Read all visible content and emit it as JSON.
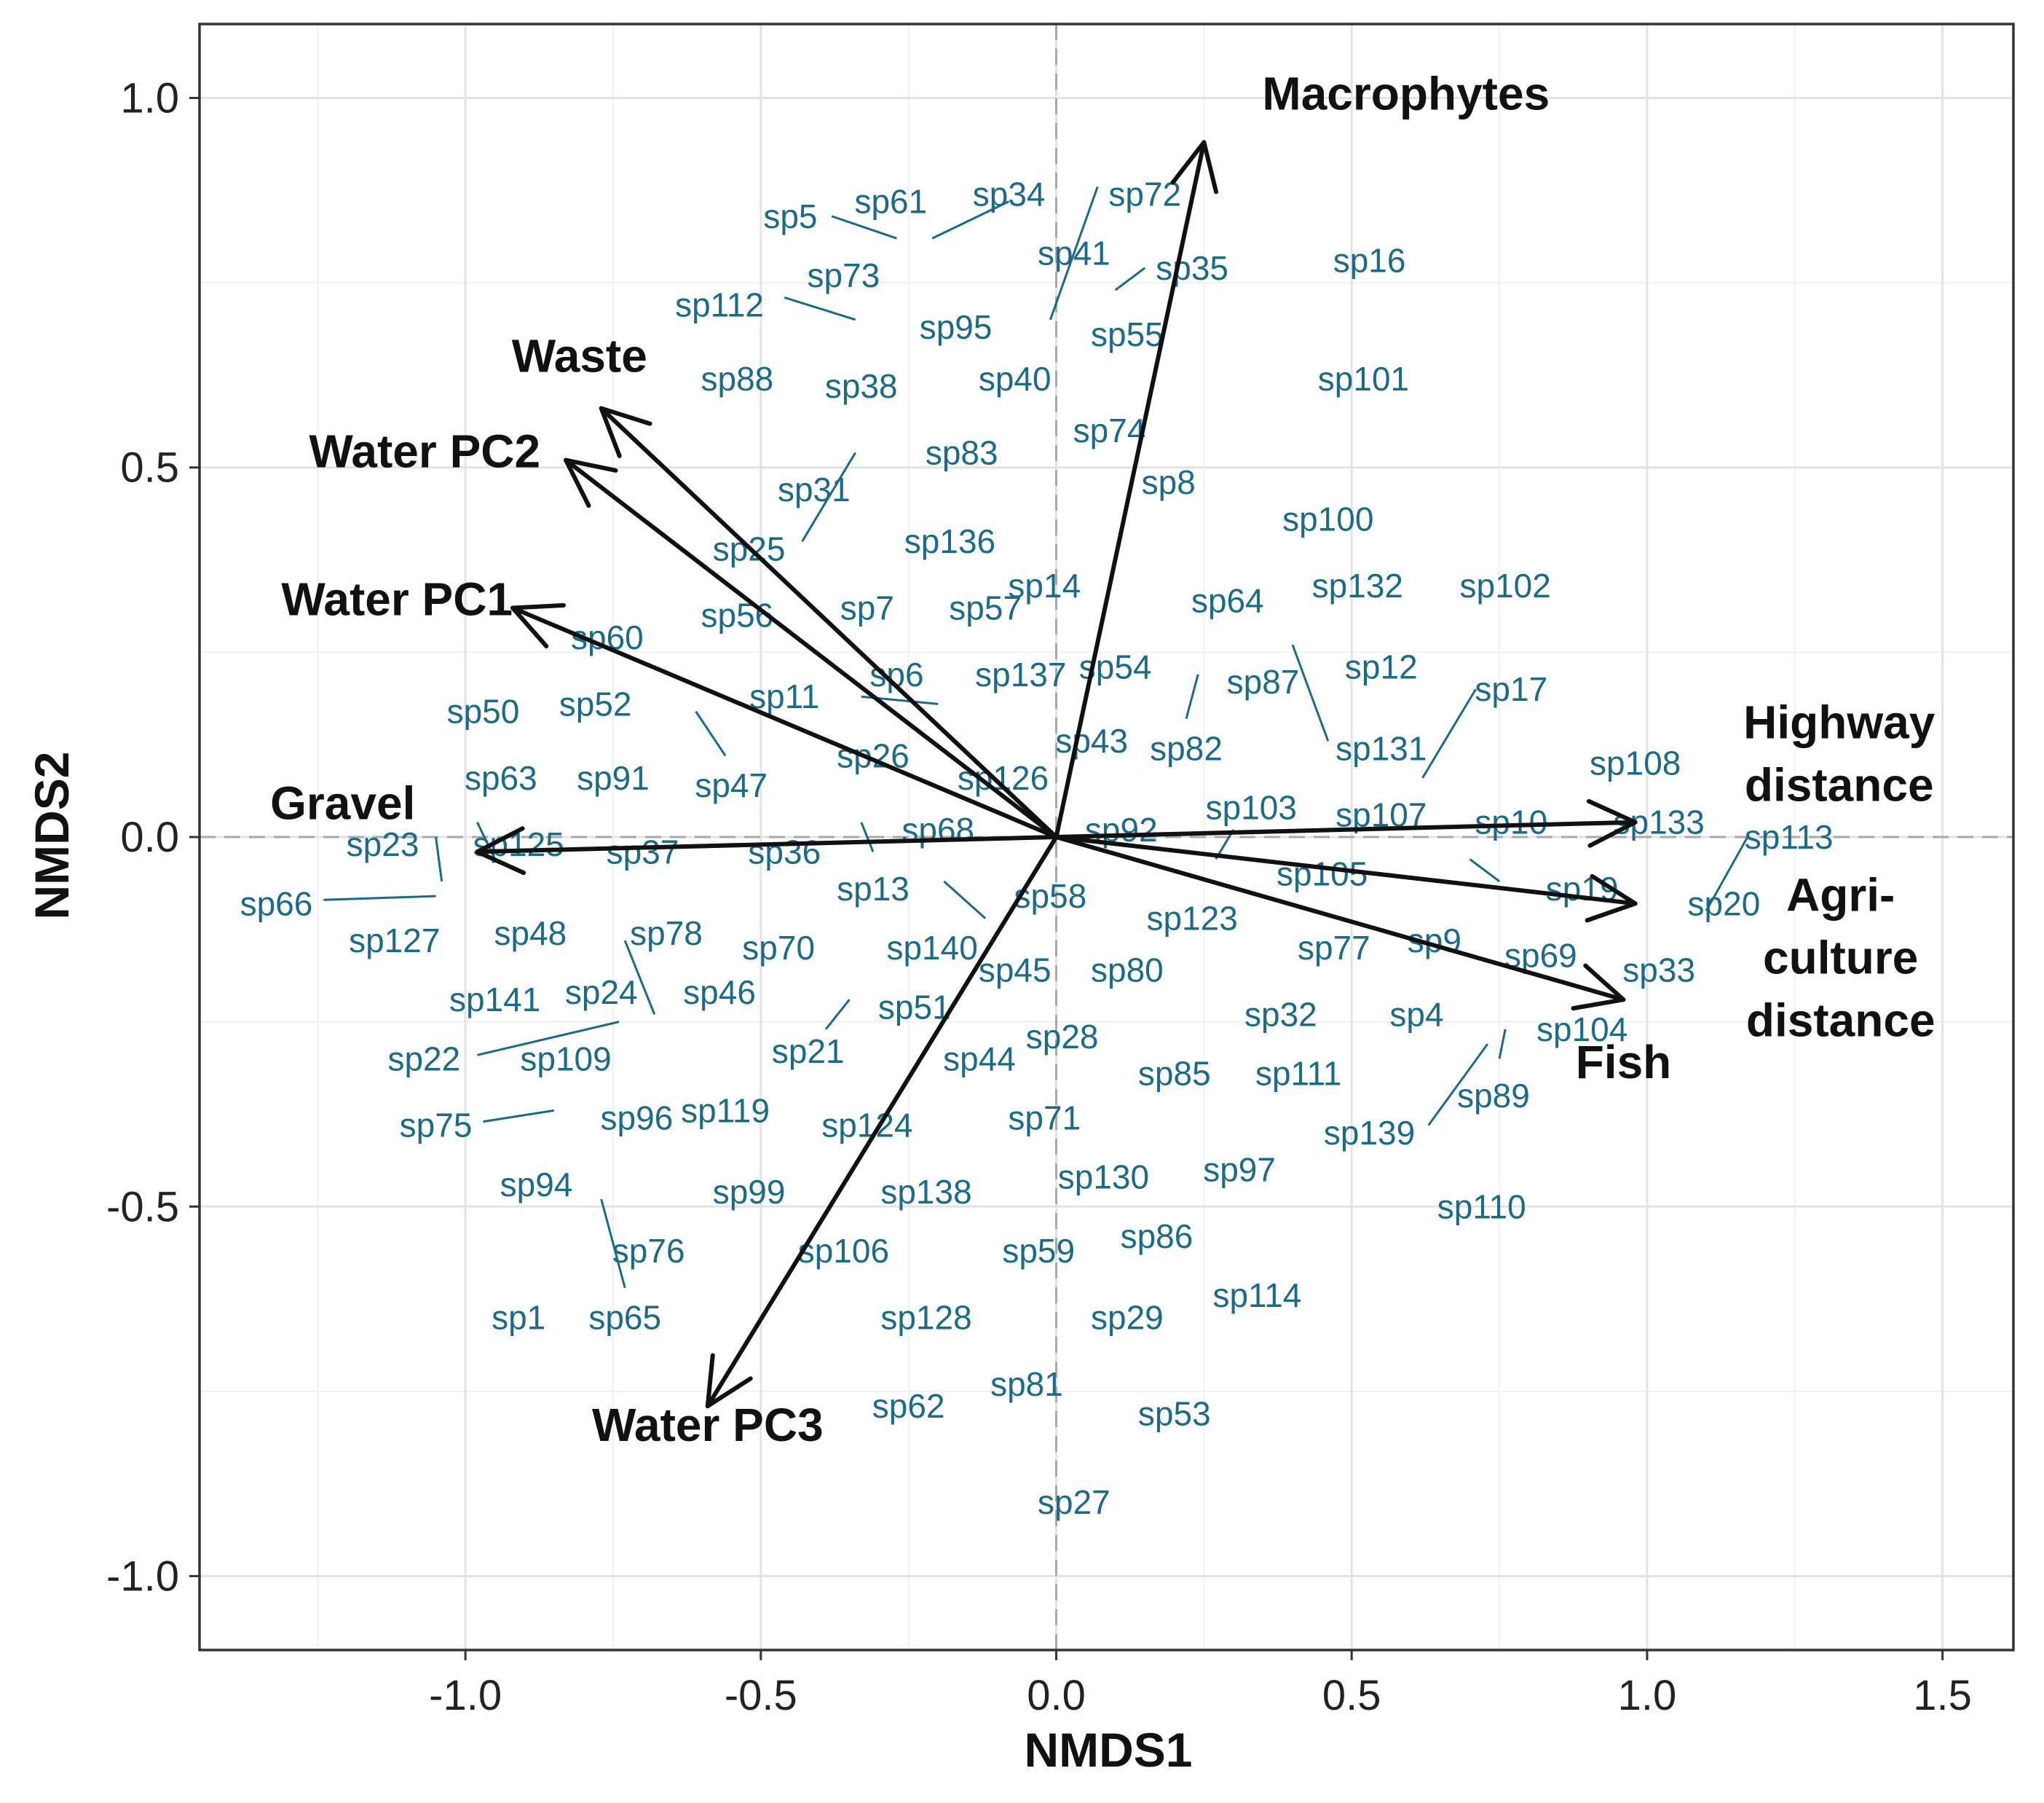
{
  "chart_data": {
    "type": "scatter",
    "title": "",
    "xlabel": "NMDS1",
    "ylabel": "NMDS2",
    "xlim": [
      -1.45,
      1.62
    ],
    "ylim": [
      -1.1,
      1.1
    ],
    "xticks": [
      -1.0,
      -0.5,
      0.0,
      0.5,
      1.0,
      1.5
    ],
    "yticks": [
      -1.0,
      -0.5,
      0.0,
      0.5,
      1.0
    ],
    "xtick_labels": [
      "-1.0",
      "-0.5",
      "0.0",
      "0.5",
      "1.0",
      "1.5"
    ],
    "ytick_labels": [
      "-1.0",
      "-0.5",
      "0.0",
      "0.5",
      "1.0"
    ],
    "grid": true,
    "colors": {
      "species": "#1a6a8a",
      "vectors": "#111111",
      "grid": "#e3e3e3"
    },
    "vectors": [
      {
        "name": "Macrophytes",
        "x": 0.25,
        "y": 0.94,
        "label_lines": [
          "Macrophytes"
        ]
      },
      {
        "name": "Waste",
        "x": -0.77,
        "y": 0.58,
        "label_lines": [
          "Waste"
        ]
      },
      {
        "name": "Water PC2",
        "x": -0.83,
        "y": 0.51,
        "label_lines": [
          "Water PC2"
        ]
      },
      {
        "name": "Water PC1",
        "x": -0.92,
        "y": 0.31,
        "label_lines": [
          "Water PC1"
        ]
      },
      {
        "name": "Gravel",
        "x": -0.98,
        "y": -0.02,
        "label_lines": [
          "Gravel"
        ]
      },
      {
        "name": "Water PC3",
        "x": -0.59,
        "y": -0.77,
        "label_lines": [
          "Water PC3"
        ]
      },
      {
        "name": "Highway distance",
        "x": 0.98,
        "y": 0.02,
        "label_lines": [
          "Highway",
          "distance"
        ]
      },
      {
        "name": "Agriculture distance",
        "x": 0.98,
        "y": -0.09,
        "label_lines": [
          "Agri-",
          "culture",
          "distance"
        ]
      },
      {
        "name": "Fish",
        "x": 0.96,
        "y": -0.22,
        "label_lines": [
          "Fish"
        ]
      }
    ],
    "species": [
      {
        "name": "sp5",
        "x": -0.45,
        "y": 0.84
      },
      {
        "name": "sp61",
        "x": -0.28,
        "y": 0.86
      },
      {
        "name": "sp34",
        "x": -0.08,
        "y": 0.87
      },
      {
        "name": "sp72",
        "x": 0.15,
        "y": 0.87
      },
      {
        "name": "sp41",
        "x": 0.03,
        "y": 0.79
      },
      {
        "name": "sp35",
        "x": 0.23,
        "y": 0.77
      },
      {
        "name": "sp16",
        "x": 0.53,
        "y": 0.78
      },
      {
        "name": "sp73",
        "x": -0.36,
        "y": 0.76
      },
      {
        "name": "sp112",
        "x": -0.57,
        "y": 0.72
      },
      {
        "name": "sp95",
        "x": -0.17,
        "y": 0.69
      },
      {
        "name": "sp55",
        "x": 0.12,
        "y": 0.68
      },
      {
        "name": "sp88",
        "x": -0.54,
        "y": 0.62
      },
      {
        "name": "sp38",
        "x": -0.33,
        "y": 0.61
      },
      {
        "name": "sp40",
        "x": -0.07,
        "y": 0.62
      },
      {
        "name": "sp101",
        "x": 0.52,
        "y": 0.62
      },
      {
        "name": "sp74",
        "x": 0.09,
        "y": 0.55
      },
      {
        "name": "sp83",
        "x": -0.16,
        "y": 0.52
      },
      {
        "name": "sp31",
        "x": -0.41,
        "y": 0.47
      },
      {
        "name": "sp8",
        "x": 0.19,
        "y": 0.48
      },
      {
        "name": "sp100",
        "x": 0.46,
        "y": 0.43
      },
      {
        "name": "sp136",
        "x": -0.18,
        "y": 0.4
      },
      {
        "name": "sp25",
        "x": -0.52,
        "y": 0.39
      },
      {
        "name": "sp14",
        "x": -0.02,
        "y": 0.34
      },
      {
        "name": "sp132",
        "x": 0.51,
        "y": 0.34
      },
      {
        "name": "sp102",
        "x": 0.76,
        "y": 0.34
      },
      {
        "name": "sp64",
        "x": 0.29,
        "y": 0.32
      },
      {
        "name": "sp7",
        "x": -0.32,
        "y": 0.31
      },
      {
        "name": "sp57",
        "x": -0.12,
        "y": 0.31
      },
      {
        "name": "sp56",
        "x": -0.54,
        "y": 0.3
      },
      {
        "name": "sp60",
        "x": -0.76,
        "y": 0.27
      },
      {
        "name": "sp6",
        "x": -0.27,
        "y": 0.22
      },
      {
        "name": "sp137",
        "x": -0.06,
        "y": 0.22
      },
      {
        "name": "sp54",
        "x": 0.1,
        "y": 0.23
      },
      {
        "name": "sp87",
        "x": 0.35,
        "y": 0.21
      },
      {
        "name": "sp12",
        "x": 0.55,
        "y": 0.23
      },
      {
        "name": "sp17",
        "x": 0.77,
        "y": 0.2
      },
      {
        "name": "sp11",
        "x": -0.46,
        "y": 0.19
      },
      {
        "name": "sp50",
        "x": -0.97,
        "y": 0.17
      },
      {
        "name": "sp52",
        "x": -0.78,
        "y": 0.18
      },
      {
        "name": "sp131",
        "x": 0.55,
        "y": 0.12
      },
      {
        "name": "sp43",
        "x": 0.06,
        "y": 0.13
      },
      {
        "name": "sp82",
        "x": 0.22,
        "y": 0.12
      },
      {
        "name": "sp26",
        "x": -0.31,
        "y": 0.11
      },
      {
        "name": "sp108",
        "x": 0.98,
        "y": 0.1
      },
      {
        "name": "sp63",
        "x": -0.94,
        "y": 0.08
      },
      {
        "name": "sp91",
        "x": -0.75,
        "y": 0.08
      },
      {
        "name": "sp47",
        "x": -0.55,
        "y": 0.07
      },
      {
        "name": "sp126",
        "x": -0.09,
        "y": 0.08
      },
      {
        "name": "sp103",
        "x": 0.33,
        "y": 0.04
      },
      {
        "name": "sp107",
        "x": 0.55,
        "y": 0.03
      },
      {
        "name": "sp10",
        "x": 0.77,
        "y": 0.02
      },
      {
        "name": "sp133",
        "x": 1.02,
        "y": 0.02
      },
      {
        "name": "sp113",
        "x": 1.24,
        "y": 0.0
      },
      {
        "name": "sp23",
        "x": -1.14,
        "y": -0.01
      },
      {
        "name": "sp125",
        "x": -0.91,
        "y": -0.01
      },
      {
        "name": "sp37",
        "x": -0.7,
        "y": -0.02
      },
      {
        "name": "sp36",
        "x": -0.46,
        "y": -0.02
      },
      {
        "name": "sp68",
        "x": -0.2,
        "y": 0.01
      },
      {
        "name": "sp92",
        "x": 0.11,
        "y": 0.01
      },
      {
        "name": "sp105",
        "x": 0.45,
        "y": -0.05
      },
      {
        "name": "sp19",
        "x": 0.89,
        "y": -0.07
      },
      {
        "name": "sp20",
        "x": 1.13,
        "y": -0.09
      },
      {
        "name": "sp66",
        "x": -1.32,
        "y": -0.09
      },
      {
        "name": "sp13",
        "x": -0.31,
        "y": -0.07
      },
      {
        "name": "sp58",
        "x": -0.01,
        "y": -0.08
      },
      {
        "name": "sp123",
        "x": 0.23,
        "y": -0.11
      },
      {
        "name": "sp127",
        "x": -1.12,
        "y": -0.14
      },
      {
        "name": "sp48",
        "x": -0.89,
        "y": -0.13
      },
      {
        "name": "sp78",
        "x": -0.66,
        "y": -0.13
      },
      {
        "name": "sp70",
        "x": -0.47,
        "y": -0.15
      },
      {
        "name": "sp140",
        "x": -0.21,
        "y": -0.15
      },
      {
        "name": "sp77",
        "x": 0.47,
        "y": -0.15
      },
      {
        "name": "sp9",
        "x": 0.64,
        "y": -0.14
      },
      {
        "name": "sp69",
        "x": 0.82,
        "y": -0.16
      },
      {
        "name": "sp33",
        "x": 1.02,
        "y": -0.18
      },
      {
        "name": "sp45",
        "x": -0.07,
        "y": -0.18
      },
      {
        "name": "sp80",
        "x": 0.12,
        "y": -0.18
      },
      {
        "name": "sp141",
        "x": -0.95,
        "y": -0.22
      },
      {
        "name": "sp24",
        "x": -0.77,
        "y": -0.21
      },
      {
        "name": "sp46",
        "x": -0.57,
        "y": -0.21
      },
      {
        "name": "sp51",
        "x": -0.24,
        "y": -0.23
      },
      {
        "name": "sp32",
        "x": 0.38,
        "y": -0.24
      },
      {
        "name": "sp4",
        "x": 0.61,
        "y": -0.24
      },
      {
        "name": "sp28",
        "x": 0.01,
        "y": -0.27
      },
      {
        "name": "sp104",
        "x": 0.89,
        "y": -0.26
      },
      {
        "name": "sp21",
        "x": -0.42,
        "y": -0.29
      },
      {
        "name": "sp22",
        "x": -1.07,
        "y": -0.3
      },
      {
        "name": "sp109",
        "x": -0.83,
        "y": -0.3
      },
      {
        "name": "sp44",
        "x": -0.13,
        "y": -0.3
      },
      {
        "name": "sp85",
        "x": 0.2,
        "y": -0.32
      },
      {
        "name": "sp111",
        "x": 0.41,
        "y": -0.32
      },
      {
        "name": "sp89",
        "x": 0.74,
        "y": -0.35
      },
      {
        "name": "sp75",
        "x": -1.05,
        "y": -0.39
      },
      {
        "name": "sp96",
        "x": -0.71,
        "y": -0.38
      },
      {
        "name": "sp119",
        "x": -0.56,
        "y": -0.37
      },
      {
        "name": "sp124",
        "x": -0.32,
        "y": -0.39
      },
      {
        "name": "sp71",
        "x": -0.02,
        "y": -0.38
      },
      {
        "name": "sp139",
        "x": 0.53,
        "y": -0.4
      },
      {
        "name": "sp130",
        "x": 0.08,
        "y": -0.46
      },
      {
        "name": "sp97",
        "x": 0.31,
        "y": -0.45
      },
      {
        "name": "sp94",
        "x": -0.88,
        "y": -0.47
      },
      {
        "name": "sp99",
        "x": -0.52,
        "y": -0.48
      },
      {
        "name": "sp138",
        "x": -0.22,
        "y": -0.48
      },
      {
        "name": "sp110",
        "x": 0.72,
        "y": -0.5
      },
      {
        "name": "sp76",
        "x": -0.69,
        "y": -0.56
      },
      {
        "name": "sp106",
        "x": -0.36,
        "y": -0.56
      },
      {
        "name": "sp59",
        "x": -0.03,
        "y": -0.56
      },
      {
        "name": "sp86",
        "x": 0.17,
        "y": -0.54
      },
      {
        "name": "sp114",
        "x": 0.34,
        "y": -0.62
      },
      {
        "name": "sp1",
        "x": -0.91,
        "y": -0.65
      },
      {
        "name": "sp65",
        "x": -0.73,
        "y": -0.65
      },
      {
        "name": "sp128",
        "x": -0.22,
        "y": -0.65
      },
      {
        "name": "sp29",
        "x": 0.12,
        "y": -0.65
      },
      {
        "name": "sp81",
        "x": -0.05,
        "y": -0.74
      },
      {
        "name": "sp62",
        "x": -0.25,
        "y": -0.77
      },
      {
        "name": "sp53",
        "x": 0.2,
        "y": -0.78
      },
      {
        "name": "sp27",
        "x": 0.03,
        "y": -0.9
      }
    ],
    "leader_lines": [
      [
        -0.38,
        0.84,
        -0.27,
        0.81
      ],
      [
        -0.21,
        0.81,
        -0.08,
        0.86
      ],
      [
        0.07,
        0.88,
        -0.01,
        0.7
      ],
      [
        0.1,
        0.74,
        0.15,
        0.77
      ],
      [
        -0.46,
        0.73,
        -0.34,
        0.7
      ],
      [
        -0.34,
        0.52,
        -0.43,
        0.4
      ],
      [
        0.24,
        0.22,
        0.22,
        0.16
      ],
      [
        0.4,
        0.26,
        0.46,
        0.13
      ],
      [
        0.71,
        0.2,
        0.62,
        0.08
      ],
      [
        -0.61,
        0.17,
        -0.56,
        0.11
      ],
      [
        -0.33,
        0.19,
        -0.2,
        0.18
      ],
      [
        -0.98,
        0.02,
        -0.95,
        -0.03
      ],
      [
        -1.05,
        0.0,
        -1.04,
        -0.06
      ],
      [
        -1.24,
        -0.085,
        -1.05,
        -0.08
      ],
      [
        -0.33,
        0.02,
        -0.31,
        -0.02
      ],
      [
        -0.19,
        -0.06,
        -0.12,
        -0.11
      ],
      [
        0.3,
        0.01,
        0.27,
        -0.03
      ],
      [
        0.7,
        -0.03,
        0.75,
        -0.06
      ],
      [
        1.17,
        0.0,
        1.1,
        -0.1
      ],
      [
        -0.73,
        -0.14,
        -0.68,
        -0.24
      ],
      [
        -0.98,
        -0.295,
        -0.74,
        -0.25
      ],
      [
        -0.97,
        -0.385,
        -0.85,
        -0.37
      ],
      [
        -0.35,
        -0.22,
        -0.39,
        -0.26
      ],
      [
        0.73,
        -0.28,
        0.63,
        -0.39
      ],
      [
        0.76,
        -0.26,
        0.75,
        -0.3
      ],
      [
        -0.77,
        -0.49,
        -0.73,
        -0.61
      ]
    ]
  }
}
